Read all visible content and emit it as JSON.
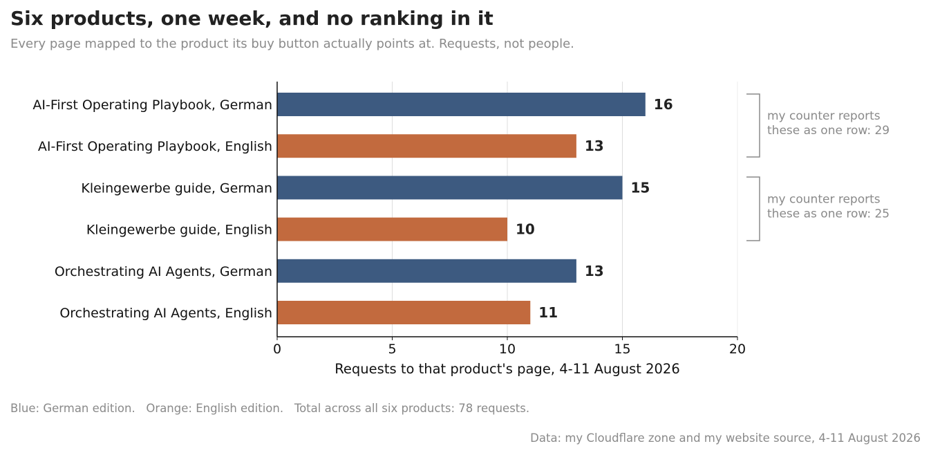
{
  "title": "Six products, one week, and no ranking in it",
  "subtitle": "Every page mapped to the product its buy button actually points at. Requests, not people.",
  "footnote": "Blue: German edition.   Orange: English edition.   Total across all six products: 78 requests.",
  "source": "Data: my Cloudflare zone and my website source, 4-11 August 2026",
  "chart_data": {
    "type": "bar",
    "orientation": "horizontal",
    "categories": [
      "AI-First Operating Playbook, German",
      "AI-First Operating Playbook, English",
      "Kleingewerbe guide, German",
      "Kleingewerbe guide, English",
      "Orchestrating AI Agents, German",
      "Orchestrating AI Agents, English"
    ],
    "values": [
      16,
      13,
      15,
      10,
      13,
      11
    ],
    "bar_colors": [
      "#3d5a80",
      "#c26a3e",
      "#3d5a80",
      "#c26a3e",
      "#3d5a80",
      "#c26a3e"
    ],
    "xlabel": "Requests to that product's page, 4-11 August 2026",
    "xlim": [
      0,
      20
    ],
    "xticks": [
      0,
      5,
      10,
      15,
      20
    ],
    "grid": "vertical",
    "annotations": [
      {
        "lines": [
          "my counter reports",
          "these as one row: 29"
        ],
        "groups": [
          0,
          1
        ]
      },
      {
        "lines": [
          "my counter reports",
          "these as one row: 25"
        ],
        "groups": [
          2,
          3
        ]
      }
    ]
  }
}
